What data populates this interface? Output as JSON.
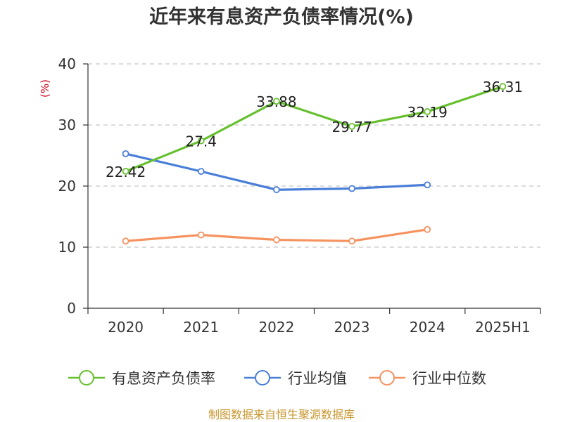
{
  "title": "近年来有息资产负债率情况(%)",
  "source_note": "制图数据来自恒生聚源数据库",
  "chart_data": {
    "type": "line",
    "title": "近年来有息资产负债率情况(%)",
    "ylabel": "(%)",
    "xlabel": "",
    "ylim": [
      0,
      40
    ],
    "yticks": [
      0,
      10,
      20,
      30,
      40
    ],
    "grid": true,
    "legend_position": "bottom",
    "categories": [
      "2020",
      "2021",
      "2022",
      "2023",
      "2024",
      "2025H1"
    ],
    "series": [
      {
        "name": "有息资产负债率",
        "color": "#66c02e",
        "values": [
          22.42,
          27.4,
          33.88,
          29.77,
          32.19,
          36.31
        ],
        "show_labels": true,
        "labels": [
          "22.42",
          "27.4",
          "33.88",
          "29.77",
          "32.19",
          "36.31"
        ]
      },
      {
        "name": "行业均值",
        "color": "#4a7fd8",
        "values": [
          25.3,
          22.4,
          19.4,
          19.6,
          20.2,
          null
        ],
        "show_labels": false
      },
      {
        "name": "行业中位数",
        "color": "#f5925e",
        "values": [
          11.0,
          12.0,
          11.2,
          11.0,
          12.9,
          null
        ],
        "show_labels": false
      }
    ]
  }
}
